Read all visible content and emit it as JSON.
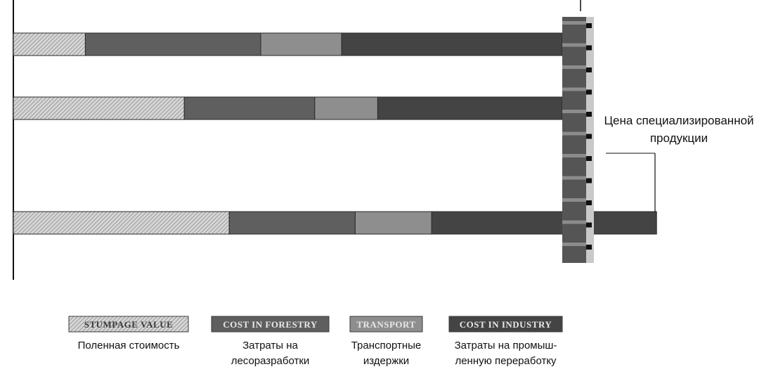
{
  "chart_data": {
    "type": "bar",
    "orientation": "horizontal",
    "stacked": true,
    "title": "",
    "xlabel": "",
    "ylabel": "",
    "series": [
      {
        "name": "STUMPAGE VALUE",
        "caption_lines": [
          "Поленная стоимость"
        ],
        "color": "#b5b5b5",
        "pattern": "hatch",
        "values": [
          8,
          19,
          24
        ]
      },
      {
        "name": "COST IN FORESTRY",
        "caption_lines": [
          "Затраты на",
          "лесоразработки"
        ],
        "color": "#5f5f5f",
        "values": [
          19.5,
          14.5,
          14
        ]
      },
      {
        "name": "TRANSPORT",
        "caption_lines": [
          "Транспортные",
          "издержки"
        ],
        "color": "#8e8e8e",
        "values": [
          9,
          7,
          8.5
        ]
      },
      {
        "name": "COST IN INDUSTRY",
        "caption_lines": [
          "Затраты на промыш-",
          "ленную переработку"
        ],
        "color": "#444444",
        "values": [
          24.5,
          20.5,
          25
        ]
      }
    ],
    "annotation": {
      "lines": [
        "Цена специализированной",
        "продукции"
      ]
    },
    "grid": false,
    "legend": "bottom"
  }
}
